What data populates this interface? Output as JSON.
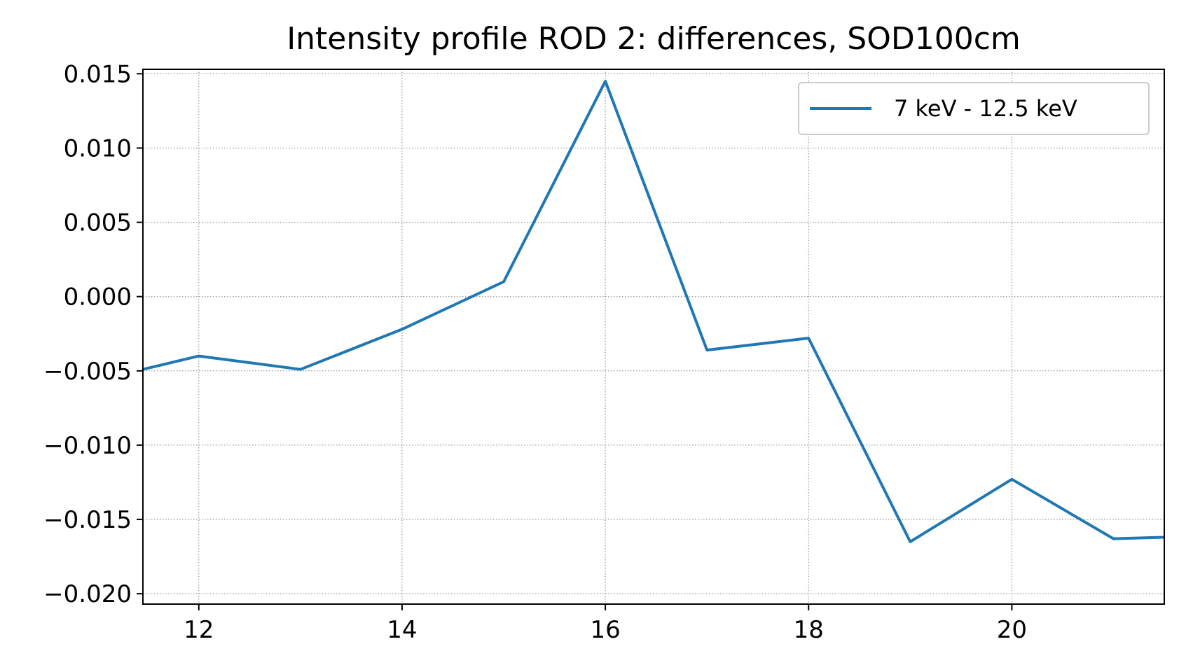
{
  "chart_data": {
    "type": "line",
    "title": "Intensity profile ROD 2: differences, SOD100cm",
    "xlabel": "",
    "ylabel": "",
    "xlim": [
      11.45,
      21.5
    ],
    "ylim": [
      -0.0207,
      0.0153
    ],
    "x_ticks": [
      12,
      14,
      16,
      18,
      20
    ],
    "x_tick_labels": [
      "12",
      "14",
      "16",
      "18",
      "20"
    ],
    "y_ticks": [
      0.015,
      0.01,
      0.005,
      0.0,
      -0.005,
      -0.01,
      -0.015,
      -0.02
    ],
    "y_tick_labels": [
      "0.015",
      "0.010",
      "0.005",
      "0.000",
      "−0.005",
      "−0.010",
      "−0.015",
      "−0.020"
    ],
    "grid": true,
    "legend_position": "top-right",
    "series": [
      {
        "name": "7 keV - 12.5 keV",
        "color": "#1f77b4",
        "x": [
          11.45,
          12,
          13,
          14,
          15,
          16,
          17,
          18,
          19,
          20,
          21,
          21.5
        ],
        "y": [
          -0.0049,
          -0.004,
          -0.0049,
          -0.0022,
          0.001,
          0.0145,
          -0.0036,
          -0.0028,
          -0.0165,
          -0.0123,
          -0.0163,
          -0.0162
        ]
      }
    ]
  }
}
